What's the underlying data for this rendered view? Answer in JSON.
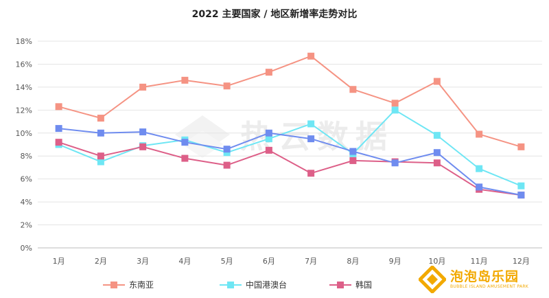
{
  "chart_data": {
    "type": "line",
    "title": "2022 主要国家 / 地区新增率走势对比",
    "categories": [
      "1月",
      "2月",
      "3月",
      "4月",
      "5月",
      "6月",
      "7月",
      "8月",
      "9月",
      "10月",
      "11月",
      "12月"
    ],
    "y_ticks": [
      "0%",
      "2%",
      "4%",
      "6%",
      "8%",
      "10%",
      "12%",
      "14%",
      "16%",
      "18%"
    ],
    "ylim": [
      0,
      18
    ],
    "grid": true,
    "legend_position": "bottom-left",
    "series": [
      {
        "name": "东南亚",
        "color": "#f59383",
        "values": [
          12.3,
          11.3,
          14.0,
          14.6,
          14.1,
          15.3,
          16.7,
          13.8,
          12.6,
          14.5,
          9.9,
          8.8
        ]
      },
      {
        "name": "中国港澳台",
        "color": "#6ee6f4",
        "values": [
          9.0,
          7.5,
          8.9,
          9.4,
          8.3,
          9.5,
          10.8,
          8.2,
          12.0,
          9.8,
          6.9,
          5.4
        ]
      },
      {
        "name": "韩国",
        "color": "#dd5f88",
        "values": [
          9.2,
          8.0,
          8.8,
          7.8,
          7.2,
          8.5,
          6.5,
          7.6,
          7.5,
          7.4,
          5.1,
          4.6
        ]
      },
      {
        "name": "",
        "color": "#6f8cef",
        "values": [
          10.4,
          10.0,
          10.1,
          9.2,
          8.6,
          10.0,
          9.5,
          8.4,
          7.4,
          8.3,
          5.3,
          4.6
        ]
      }
    ]
  },
  "watermark": "热云数据",
  "logo": {
    "name": "泡泡岛乐园",
    "subtitle": "BUBBLE ISLAND AMUSEMENT PARK",
    "color": "#f2a900",
    "icon": "bubble-island-logo-icon"
  }
}
